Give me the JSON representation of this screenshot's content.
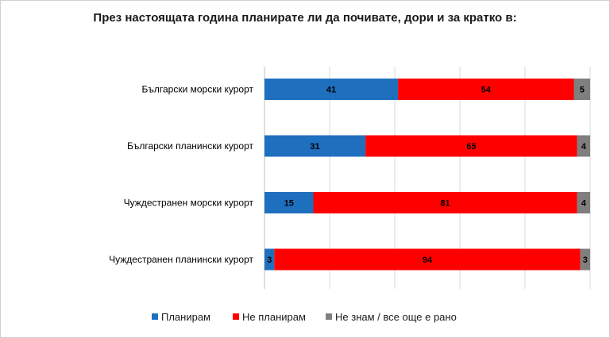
{
  "chart_data": {
    "type": "bar",
    "orientation": "horizontal",
    "stacked": true,
    "title": "През настоящата година планирате ли да почивате, дори и за кратко в:",
    "categories": [
      "Български морски курорт",
      "Български планински курорт",
      "Чуждестранен морски курорт",
      "Чуждестранен планински курорт"
    ],
    "series": [
      {
        "name": "Планирам",
        "color": "#1f6fbf",
        "values": [
          41,
          31,
          15,
          3
        ]
      },
      {
        "name": "Не планирам",
        "color": "#ff0000",
        "values": [
          54,
          65,
          81,
          94
        ]
      },
      {
        "name": "Не знам / все още е рано",
        "color": "#7f7f7f",
        "values": [
          5,
          4,
          4,
          3
        ]
      }
    ],
    "xlim": [
      0,
      100
    ],
    "legend_position": "bottom",
    "grid": "vertical"
  }
}
